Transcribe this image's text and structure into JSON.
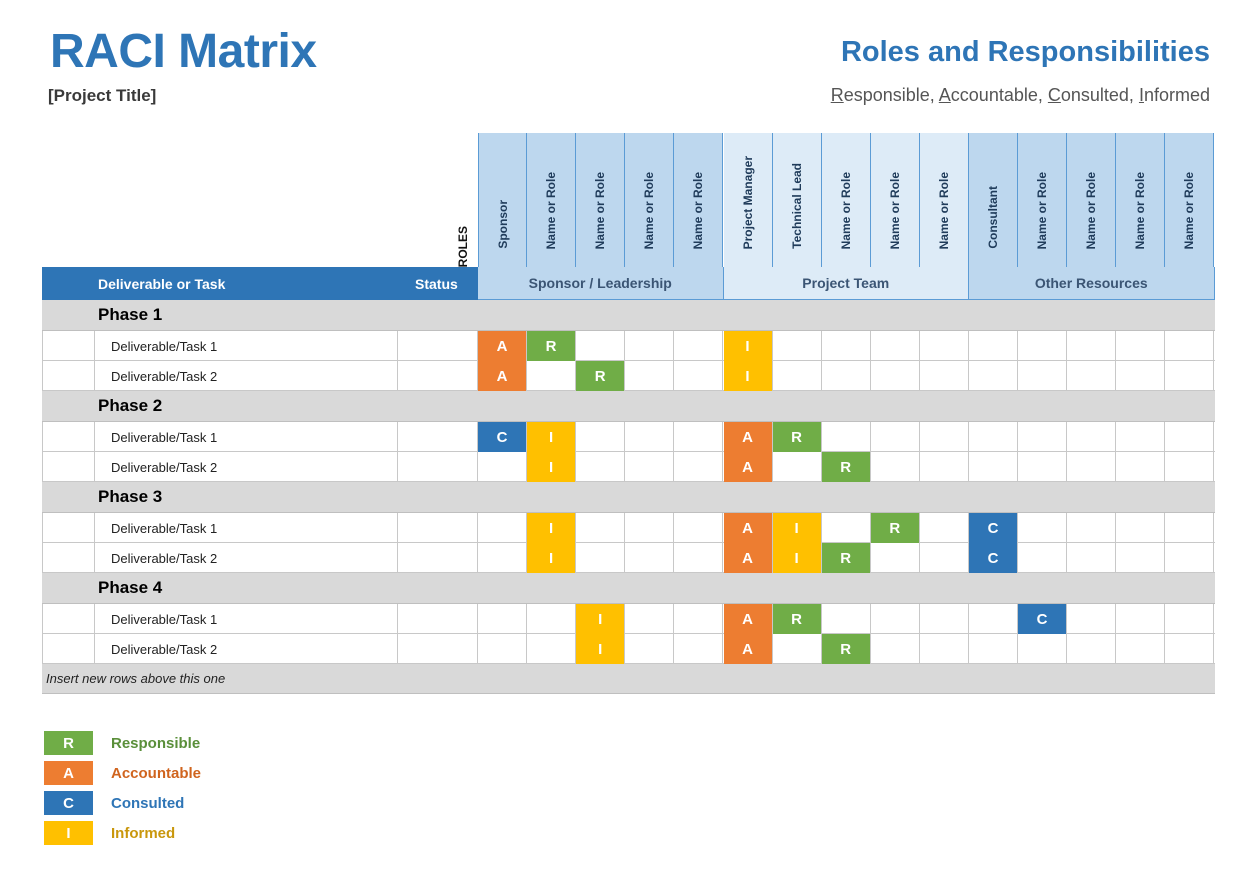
{
  "header": {
    "title": "RACI Matrix",
    "project_title": "[Project Title]",
    "right_title": "Roles and Responsibilities",
    "right_subtitle_parts": [
      {
        "u": "R",
        "rest": "esponsible, "
      },
      {
        "u": "A",
        "rest": "ccountable, "
      },
      {
        "u": "C",
        "rest": "onsulted, "
      },
      {
        "u": "I",
        "rest": "nformed"
      }
    ]
  },
  "table": {
    "roles_label": "ROLES",
    "task_header": "Deliverable or Task",
    "status_header": "Status",
    "roles": [
      "Sponsor",
      "Name or Role",
      "Name or Role",
      "Name or Role",
      "Name or Role",
      "Project Manager",
      "Technical Lead",
      "Name or Role",
      "Name or Role",
      "Name or Role",
      "Consultant",
      "Name or Role",
      "Name or Role",
      "Name or Role",
      "Name or Role"
    ],
    "groups": [
      {
        "label": "Sponsor / Leadership",
        "span": 5,
        "shade": "dark"
      },
      {
        "label": "Project Team",
        "span": 5,
        "shade": "light"
      },
      {
        "label": "Other Resources",
        "span": 5,
        "shade": "dark"
      }
    ],
    "phases": [
      {
        "name": "Phase 1",
        "tasks": [
          {
            "name": "Deliverable/Task 1",
            "status": "",
            "cells": [
              "A",
              "R",
              "",
              "",
              "",
              "I",
              "",
              "",
              "",
              "",
              "",
              "",
              "",
              "",
              ""
            ]
          },
          {
            "name": "Deliverable/Task 2",
            "status": "",
            "cells": [
              "A",
              "",
              "R",
              "",
              "",
              "I",
              "",
              "",
              "",
              "",
              "",
              "",
              "",
              "",
              ""
            ]
          }
        ]
      },
      {
        "name": "Phase 2",
        "tasks": [
          {
            "name": "Deliverable/Task 1",
            "status": "",
            "cells": [
              "C",
              "I",
              "",
              "",
              "",
              "A",
              "R",
              "",
              "",
              "",
              "",
              "",
              "",
              "",
              ""
            ]
          },
          {
            "name": "Deliverable/Task 2",
            "status": "",
            "cells": [
              "",
              "I",
              "",
              "",
              "",
              "A",
              "",
              "R",
              "",
              "",
              "",
              "",
              "",
              "",
              ""
            ]
          }
        ]
      },
      {
        "name": "Phase 3",
        "tasks": [
          {
            "name": "Deliverable/Task 1",
            "status": "",
            "cells": [
              "",
              "I",
              "",
              "",
              "",
              "A",
              "I",
              "",
              "R",
              "",
              "C",
              "",
              "",
              "",
              ""
            ]
          },
          {
            "name": "Deliverable/Task 2",
            "status": "",
            "cells": [
              "",
              "I",
              "",
              "",
              "",
              "A",
              "I",
              "R",
              "",
              "",
              "C",
              "",
              "",
              "",
              ""
            ]
          }
        ]
      },
      {
        "name": "Phase 4",
        "tasks": [
          {
            "name": "Deliverable/Task 1",
            "status": "",
            "cells": [
              "",
              "",
              "I",
              "",
              "",
              "A",
              "R",
              "",
              "",
              "",
              "",
              "C",
              "",
              "",
              ""
            ]
          },
          {
            "name": "Deliverable/Task 2",
            "status": "",
            "cells": [
              "",
              "",
              "I",
              "",
              "",
              "A",
              "",
              "R",
              "",
              "",
              "",
              "",
              "",
              "",
              ""
            ]
          }
        ]
      }
    ],
    "footer_note": "Insert new rows above this one"
  },
  "legend": [
    {
      "code": "R",
      "label": "Responsible",
      "color": "#70ad47",
      "text_color": "#5a8f3a"
    },
    {
      "code": "A",
      "label": "Accountable",
      "color": "#ed7d31",
      "text_color": "#d0641e"
    },
    {
      "code": "C",
      "label": "Consulted",
      "color": "#2e75b6",
      "text_color": "#2e75b6"
    },
    {
      "code": "I",
      "label": "Informed",
      "color": "#ffc000",
      "text_color": "#c9970c"
    }
  ]
}
